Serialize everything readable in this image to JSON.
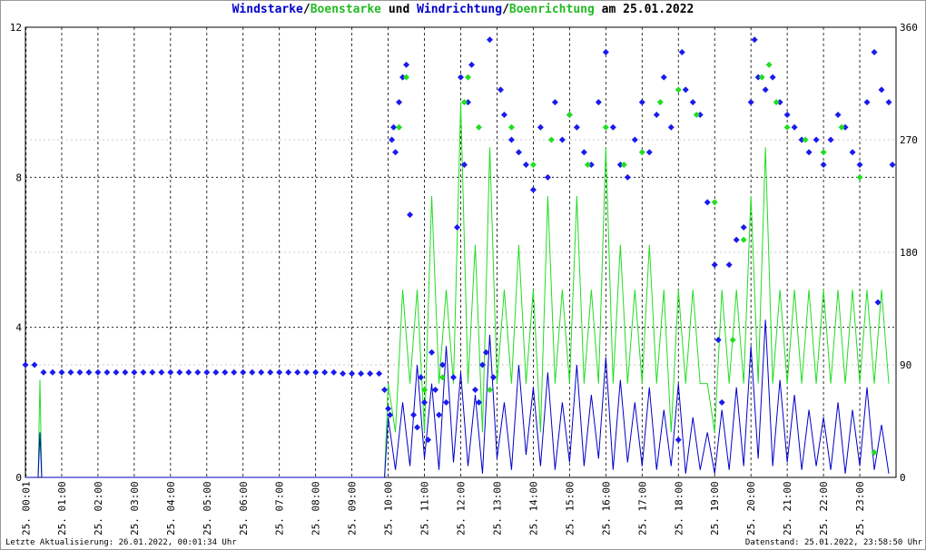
{
  "chart_data": {
    "type": "line",
    "title": [
      "Windstarke",
      "/",
      "Boenstarke",
      " und ",
      "Windrichtung",
      "/",
      "Boenrichtung",
      " am 25.01.2022"
    ],
    "title_colors": [
      "#0000cc",
      "#000000",
      "#22bb22",
      "#000000",
      "#0000cc",
      "#000000",
      "#22bb22",
      "#000000"
    ],
    "footer_left": "Letzte Aktualisierung: 26.01.2022, 00:01:34 Uhr",
    "footer_right": "Datenstand: 25.01.2022, 23:58:50 Uhr",
    "xlim": [
      0,
      24
    ],
    "xticks": [
      {
        "value": 0.0167,
        "label": "25. 00:01"
      },
      {
        "value": 1,
        "label": "25. 01:00"
      },
      {
        "value": 2,
        "label": "25. 02:00"
      },
      {
        "value": 3,
        "label": "25. 03:00"
      },
      {
        "value": 4,
        "label": "25. 04:00"
      },
      {
        "value": 5,
        "label": "25. 05:00"
      },
      {
        "value": 6,
        "label": "25. 06:00"
      },
      {
        "value": 7,
        "label": "25. 07:00"
      },
      {
        "value": 8,
        "label": "25. 08:00"
      },
      {
        "value": 9,
        "label": "25. 09:00"
      },
      {
        "value": 10,
        "label": "25. 10:00"
      },
      {
        "value": 11,
        "label": "25. 11:00"
      },
      {
        "value": 12,
        "label": "25. 12:00"
      },
      {
        "value": 13,
        "label": "25. 13:00"
      },
      {
        "value": 14,
        "label": "25. 14:00"
      },
      {
        "value": 15,
        "label": "25. 15:00"
      },
      {
        "value": 16,
        "label": "25. 16:00"
      },
      {
        "value": 17,
        "label": "25. 17:00"
      },
      {
        "value": 18,
        "label": "25. 18:00"
      },
      {
        "value": 19,
        "label": "25. 19:00"
      },
      {
        "value": 20,
        "label": "25. 20:00"
      },
      {
        "value": 21,
        "label": "25. 21:00"
      },
      {
        "value": 22,
        "label": "25. 22:00"
      },
      {
        "value": 23,
        "label": "25. 23:00"
      }
    ],
    "ylim": [
      0,
      12
    ],
    "yticks": [
      0,
      4,
      8,
      12
    ],
    "y2lim": [
      0,
      360
    ],
    "y2ticks": [
      0,
      90,
      180,
      270,
      360
    ],
    "grid": true,
    "x": [
      0,
      0.35,
      0.4,
      0.45,
      9.9,
      10.0,
      10.2,
      10.4,
      10.6,
      10.8,
      11.0,
      11.2,
      11.4,
      11.6,
      11.8,
      12.0,
      12.2,
      12.4,
      12.6,
      12.8,
      13.0,
      13.2,
      13.4,
      13.6,
      13.8,
      14.0,
      14.2,
      14.4,
      14.6,
      14.8,
      15.0,
      15.2,
      15.4,
      15.6,
      15.8,
      16.0,
      16.2,
      16.4,
      16.6,
      16.8,
      17.0,
      17.2,
      17.4,
      17.6,
      17.8,
      18.0,
      18.2,
      18.4,
      18.6,
      18.8,
      19.0,
      19.2,
      19.4,
      19.6,
      19.8,
      20.0,
      20.2,
      20.4,
      20.6,
      20.8,
      21.0,
      21.2,
      21.4,
      21.6,
      21.8,
      22.0,
      22.2,
      22.4,
      22.6,
      22.8,
      23.0,
      23.2,
      23.4,
      23.6,
      23.8
    ],
    "series": [
      {
        "name": "Boenstarke",
        "kind": "line",
        "color": "#22dd22",
        "values": [
          0,
          0,
          2.6,
          0,
          0,
          2.5,
          1.2,
          5.0,
          2.5,
          5.0,
          1.2,
          7.5,
          2.5,
          5.0,
          2.5,
          10.0,
          2.5,
          6.2,
          1.2,
          8.8,
          2.5,
          5.0,
          2.5,
          6.2,
          2.5,
          5.0,
          1.2,
          7.5,
          2.5,
          5.0,
          2.5,
          7.5,
          2.5,
          5.0,
          2.5,
          8.8,
          2.5,
          6.2,
          2.5,
          5.0,
          2.5,
          6.2,
          2.5,
          5.0,
          1.2,
          5.0,
          2.5,
          5.0,
          2.5,
          2.5,
          1.2,
          5.0,
          2.5,
          5.0,
          2.5,
          7.5,
          2.5,
          8.8,
          2.5,
          5.0,
          2.5,
          5.0,
          2.5,
          5.0,
          2.5,
          5.0,
          2.5,
          5.0,
          2.5,
          5.0,
          2.5,
          5.0,
          2.5,
          5.0,
          2.5
        ]
      },
      {
        "name": "Windstarke",
        "kind": "line",
        "color": "#0000cc",
        "values": [
          0,
          0,
          1.2,
          0,
          0,
          1.6,
          0.2,
          2.0,
          0.3,
          3.0,
          0.5,
          2.5,
          0.2,
          3.5,
          0.4,
          2.8,
          0.3,
          2.2,
          0.1,
          3.8,
          0.5,
          2.0,
          0.2,
          3.0,
          0.6,
          2.4,
          0.3,
          2.8,
          0.2,
          2.0,
          0.4,
          3.0,
          0.3,
          2.2,
          0.5,
          3.2,
          0.2,
          2.6,
          0.4,
          2.0,
          0.3,
          2.4,
          0.2,
          1.8,
          0.3,
          2.5,
          0.1,
          1.6,
          0.2,
          1.2,
          0.1,
          1.8,
          0.2,
          2.4,
          0.3,
          3.5,
          0.5,
          4.2,
          0.3,
          2.6,
          0.4,
          2.2,
          0.2,
          1.8,
          0.3,
          1.6,
          0.2,
          2.0,
          0.1,
          1.8,
          0.3,
          2.4,
          0.2,
          1.4,
          0.1
        ]
      },
      {
        "name": "Windrichtung",
        "kind": "scatter",
        "axis": "y2",
        "color": "#1a1aee",
        "x": [
          0,
          0.25,
          0.5,
          0.75,
          1,
          1.25,
          1.5,
          1.75,
          2,
          2.25,
          2.5,
          2.75,
          3,
          3.25,
          3.5,
          3.75,
          4,
          4.25,
          4.5,
          4.75,
          5,
          5.25,
          5.5,
          5.75,
          6,
          6.25,
          6.5,
          6.75,
          7,
          7.25,
          7.5,
          7.75,
          8,
          8.25,
          8.5,
          8.75,
          9,
          9.25,
          9.5,
          9.75,
          9.9,
          10.0,
          10.05,
          10.1,
          10.15,
          10.2,
          10.3,
          10.4,
          10.5,
          10.6,
          10.7,
          10.8,
          10.9,
          11.0,
          11.1,
          11.2,
          11.3,
          11.4,
          11.5,
          11.6,
          11.8,
          11.9,
          12.0,
          12.1,
          12.2,
          12.3,
          12.4,
          12.5,
          12.6,
          12.7,
          12.8,
          12.9,
          13.1,
          13.2,
          13.4,
          13.6,
          13.8,
          14.0,
          14.2,
          14.4,
          14.6,
          14.8,
          15.0,
          15.2,
          15.4,
          15.6,
          15.8,
          16.0,
          16.2,
          16.4,
          16.6,
          16.8,
          17.0,
          17.2,
          17.4,
          17.6,
          17.8,
          18.0,
          18.1,
          18.2,
          18.4,
          18.6,
          18.8,
          19.0,
          19.1,
          19.2,
          19.4,
          19.6,
          19.8,
          20.0,
          20.1,
          20.2,
          20.4,
          20.6,
          20.8,
          21.0,
          21.2,
          21.4,
          21.6,
          21.8,
          22.0,
          22.2,
          22.4,
          22.6,
          22.8,
          23.0,
          23.2,
          23.4,
          23.5,
          23.6,
          23.8,
          23.9
        ],
        "values": [
          90,
          90,
          84,
          84,
          84,
          84,
          84,
          84,
          84,
          84,
          84,
          84,
          84,
          84,
          84,
          84,
          84,
          84,
          84,
          84,
          84,
          84,
          84,
          84,
          84,
          84,
          84,
          84,
          84,
          84,
          84,
          84,
          84,
          84,
          84,
          83,
          83,
          83,
          83,
          83,
          70,
          55,
          50,
          270,
          280,
          260,
          300,
          320,
          330,
          210,
          50,
          40,
          80,
          60,
          30,
          100,
          70,
          50,
          90,
          60,
          80,
          200,
          320,
          250,
          300,
          330,
          70,
          60,
          90,
          100,
          350,
          80,
          310,
          290,
          270,
          260,
          250,
          230,
          280,
          240,
          300,
          270,
          290,
          280,
          260,
          250,
          300,
          340,
          280,
          250,
          240,
          270,
          300,
          260,
          290,
          320,
          280,
          30,
          340,
          310,
          300,
          290,
          220,
          170,
          110,
          60,
          170,
          190,
          200,
          300,
          350,
          320,
          310,
          320,
          300,
          290,
          280,
          270,
          260,
          270,
          250,
          270,
          290,
          280,
          260,
          250,
          300,
          340,
          140,
          310,
          300,
          250
        ]
      },
      {
        "name": "Boenrichtung",
        "kind": "scatter",
        "axis": "y2",
        "color": "#22dd22",
        "x": [
          10.3,
          10.5,
          11.0,
          11.5,
          12.1,
          12.2,
          12.5,
          12.8,
          13.4,
          14.0,
          14.5,
          15.0,
          15.5,
          16.0,
          16.5,
          17.0,
          17.5,
          18.0,
          18.5,
          19.0,
          19.5,
          19.8,
          20.3,
          20.5,
          20.7,
          21.0,
          21.5,
          22.0,
          22.5,
          23.0,
          23.4
        ],
        "values": [
          280,
          320,
          70,
          80,
          300,
          320,
          280,
          70,
          280,
          250,
          270,
          290,
          250,
          280,
          250,
          260,
          300,
          310,
          290,
          220,
          110,
          190,
          320,
          330,
          300,
          280,
          270,
          260,
          280,
          240,
          20
        ]
      }
    ]
  }
}
